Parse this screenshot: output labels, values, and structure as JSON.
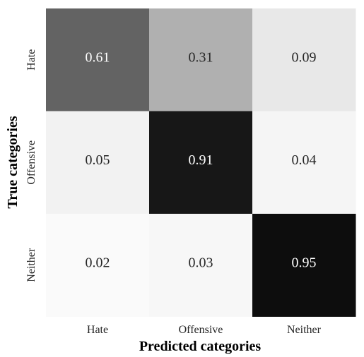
{
  "chart_data": {
    "type": "heatmap",
    "title": "",
    "xlabel": "Predicted categories",
    "ylabel": "True categories",
    "x_categories": [
      "Hate",
      "Offensive",
      "Neither"
    ],
    "y_categories": [
      "Hate",
      "Offensive",
      "Neither"
    ],
    "values": [
      [
        0.61,
        0.31,
        0.09
      ],
      [
        0.05,
        0.91,
        0.04
      ],
      [
        0.02,
        0.03,
        0.95
      ]
    ],
    "value_range": [
      0,
      1
    ],
    "colormap": "white-to-black (greys)",
    "grid": false,
    "legend": "none",
    "low_color": "#ffffff",
    "high_color": "#000000"
  }
}
